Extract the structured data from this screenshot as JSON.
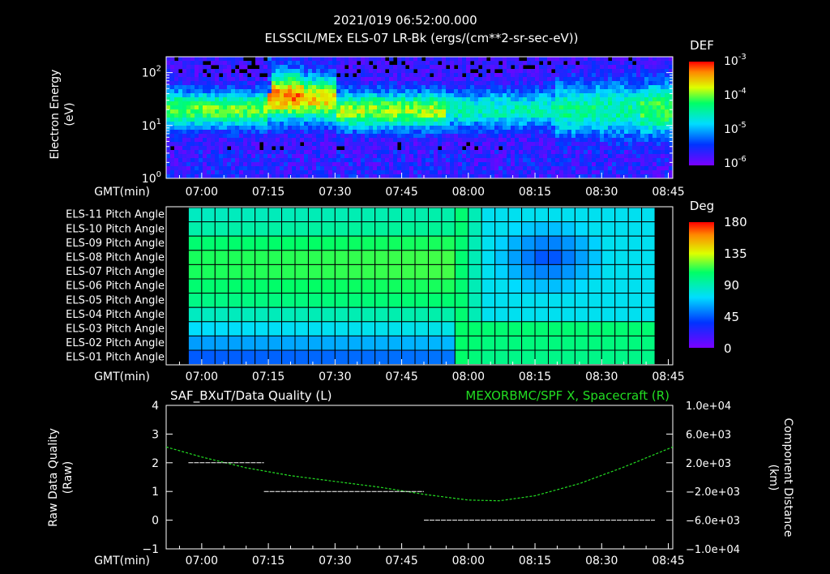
{
  "header": {
    "title": "2021/019 06:52:00.000",
    "subtitle": "ELSSCIL/MEx ELS-07 LR-Bk  (ergs/(cm**2-sr-sec-eV))"
  },
  "colors": {
    "axis": "#ffffff",
    "green_series": "#22dd22"
  },
  "time_axis": {
    "label": "GMT(min)",
    "ticks": [
      "07:00",
      "07:15",
      "07:30",
      "07:45",
      "08:00",
      "08:15",
      "08:30",
      "08:45"
    ],
    "range_min": [
      -8,
      106
    ],
    "tick_min": [
      0,
      15,
      30,
      45,
      60,
      75,
      90,
      105
    ]
  },
  "chart_data": [
    {
      "type": "heatmap",
      "name": "energy-spectrogram",
      "ylabel": [
        "Electron Energy",
        "(eV)"
      ],
      "yscale": "log",
      "ylim": [
        1,
        200
      ],
      "y_ticks": [
        {
          "value": 1,
          "base": "10",
          "exp": "0"
        },
        {
          "value": 10,
          "base": "10",
          "exp": "1"
        },
        {
          "value": 100,
          "base": "10",
          "exp": "2"
        }
      ],
      "colorbar": {
        "title": "DEF",
        "labels": [
          {
            "base": "10",
            "exp": "-3"
          },
          {
            "base": "10",
            "exp": "-4"
          },
          {
            "base": "10",
            "exp": "-5"
          },
          {
            "base": "10",
            "exp": "-6"
          }
        ]
      }
    },
    {
      "type": "heatmap",
      "name": "pitch-angle",
      "rows": [
        "ELS-11 Pitch Angle",
        "ELS-10 Pitch Angle",
        "ELS-09 Pitch Angle",
        "ELS-08 Pitch Angle",
        "ELS-07 Pitch Angle",
        "ELS-06 Pitch Angle",
        "ELS-05 Pitch Angle",
        "ELS-04 Pitch Angle",
        "ELS-03 Pitch Angle",
        "ELS-02 Pitch Angle",
        "ELS-01 Pitch Angle"
      ],
      "x_start_min": -3,
      "x_end_min": 102,
      "colorbar": {
        "title": "Deg",
        "labels": [
          "180",
          "135",
          "90",
          "45",
          "0"
        ]
      }
    },
    {
      "type": "line",
      "name": "quality-and-position",
      "title_left": "SAF_BXuT/Data Quality (L)",
      "title_right": "MEXORBMC/SPF X, Spacecraft (R)",
      "ylabel_left": [
        "Raw Data Quality",
        "(Raw)"
      ],
      "ylabel_right": [
        "Component Distance",
        "(km)"
      ],
      "ylim_left": [
        -1,
        4
      ],
      "y_ticks_left": [
        "4",
        "3",
        "2",
        "1",
        "0",
        "−1"
      ],
      "ylim_right": [
        -10000,
        10000
      ],
      "y_ticks_right": [
        "1.0e+04",
        "6.0e+03",
        "2.0e+03",
        "−2.0e+03",
        "−6.0e+03",
        "−1.0e+04"
      ],
      "quality_segments": [
        {
          "x0": -3,
          "x1": 14,
          "value": 2
        },
        {
          "x0": 14,
          "x1": 50,
          "value": 1
        },
        {
          "x0": 50,
          "x1": 102,
          "value": 0
        }
      ],
      "spacecraft_x": {
        "x": [
          -8,
          0,
          10,
          20,
          30,
          40,
          50,
          60,
          67,
          75,
          85,
          95,
          106
        ],
        "y": [
          4200,
          2800,
          1300,
          200,
          -600,
          -1400,
          -2400,
          -3200,
          -3300,
          -2600,
          -900,
          1400,
          4200
        ]
      }
    }
  ]
}
